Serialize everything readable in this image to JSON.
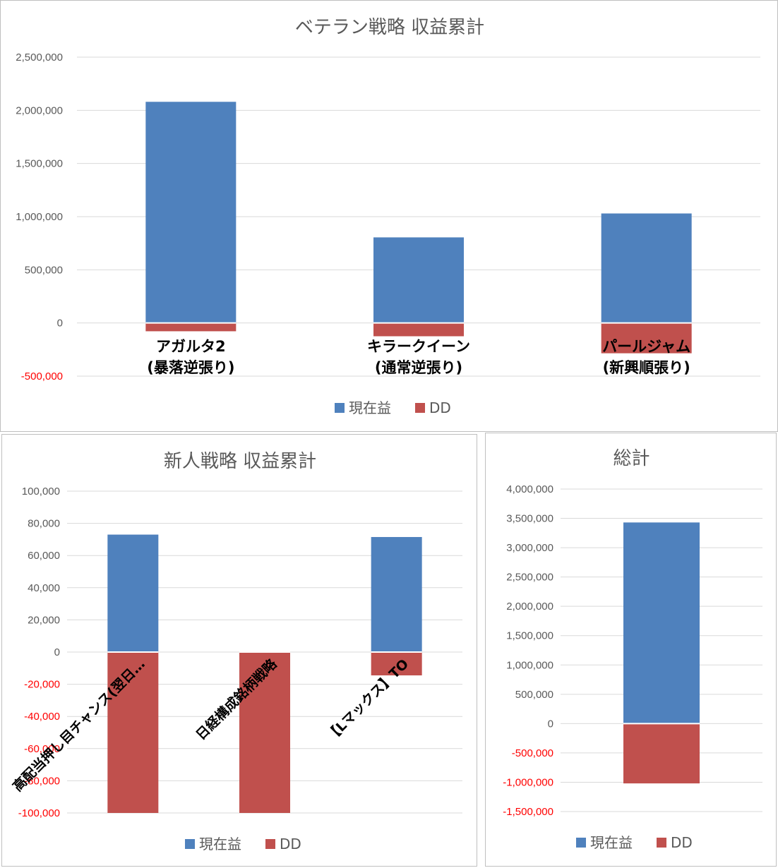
{
  "colors": {
    "current": "#4f81bd",
    "dd": "#c0504d",
    "grid": "#d9d9d9",
    "negative_tick": "#ff0000",
    "tick": "#595959"
  },
  "legend": {
    "current": "現在益",
    "dd": "DD"
  },
  "chart_data": [
    {
      "id": "veteran",
      "type": "bar",
      "title": "ベテラン戦略 収益累計",
      "categories": [
        [
          "アガルタ2",
          "(暴落逆張り)"
        ],
        [
          "キラークイーン",
          "(通常逆張り)"
        ],
        [
          "パールジャム",
          "(新興順張り)"
        ]
      ],
      "series": [
        {
          "name": "現在益",
          "values": [
            2080000,
            805000,
            1030000
          ]
        },
        {
          "name": "DD",
          "values": [
            -78000,
            -125000,
            -285000
          ]
        }
      ],
      "ylim": [
        -500000,
        2500000
      ],
      "yticks": [
        2500000,
        2000000,
        1500000,
        1000000,
        500000,
        0,
        -500000
      ],
      "ytick_labels": [
        "2,500,000",
        "2,000,000",
        "1,500,000",
        "1,000,000",
        "500,000",
        "0",
        "-500,000"
      ],
      "grid": true,
      "legend_position": "bottom"
    },
    {
      "id": "newbie",
      "type": "bar",
      "title": "新人戦略 収益累計",
      "categories": [
        "高配当押し目チャンス(翌日…",
        "日経構成銘柄戦略",
        "【Lマックス】TO"
      ],
      "series": [
        {
          "name": "現在益",
          "values": [
            73000,
            0,
            71500
          ]
        },
        {
          "name": "DD",
          "values": [
            -100000,
            -100000,
            -14500
          ]
        }
      ],
      "ylim": [
        -100000,
        100000
      ],
      "yticks": [
        100000,
        80000,
        60000,
        40000,
        20000,
        0,
        -20000,
        -40000,
        -60000,
        -80000,
        -100000
      ],
      "ytick_labels": [
        "100,000",
        "80,000",
        "60,000",
        "40,000",
        "20,000",
        "0",
        "-20,000",
        "-40,000",
        "-60,000",
        "-80,000",
        "-100,000"
      ],
      "grid": true,
      "legend_position": "bottom"
    },
    {
      "id": "total",
      "type": "bar",
      "title": "総計",
      "categories": [
        ""
      ],
      "series": [
        {
          "name": "現在益",
          "values": [
            3430000
          ]
        },
        {
          "name": "DD",
          "values": [
            -1020000
          ]
        }
      ],
      "ylim": [
        -1500000,
        4000000
      ],
      "yticks": [
        4000000,
        3500000,
        3000000,
        2500000,
        2000000,
        1500000,
        1000000,
        500000,
        0,
        -500000,
        -1000000,
        -1500000
      ],
      "ytick_labels": [
        "4,000,000",
        "3,500,000",
        "3,000,000",
        "2,500,000",
        "2,000,000",
        "1,500,000",
        "1,000,000",
        "500,000",
        "0",
        "-500,000",
        "-1,000,000",
        "-1,500,000"
      ],
      "grid": true,
      "legend_position": "bottom"
    }
  ]
}
